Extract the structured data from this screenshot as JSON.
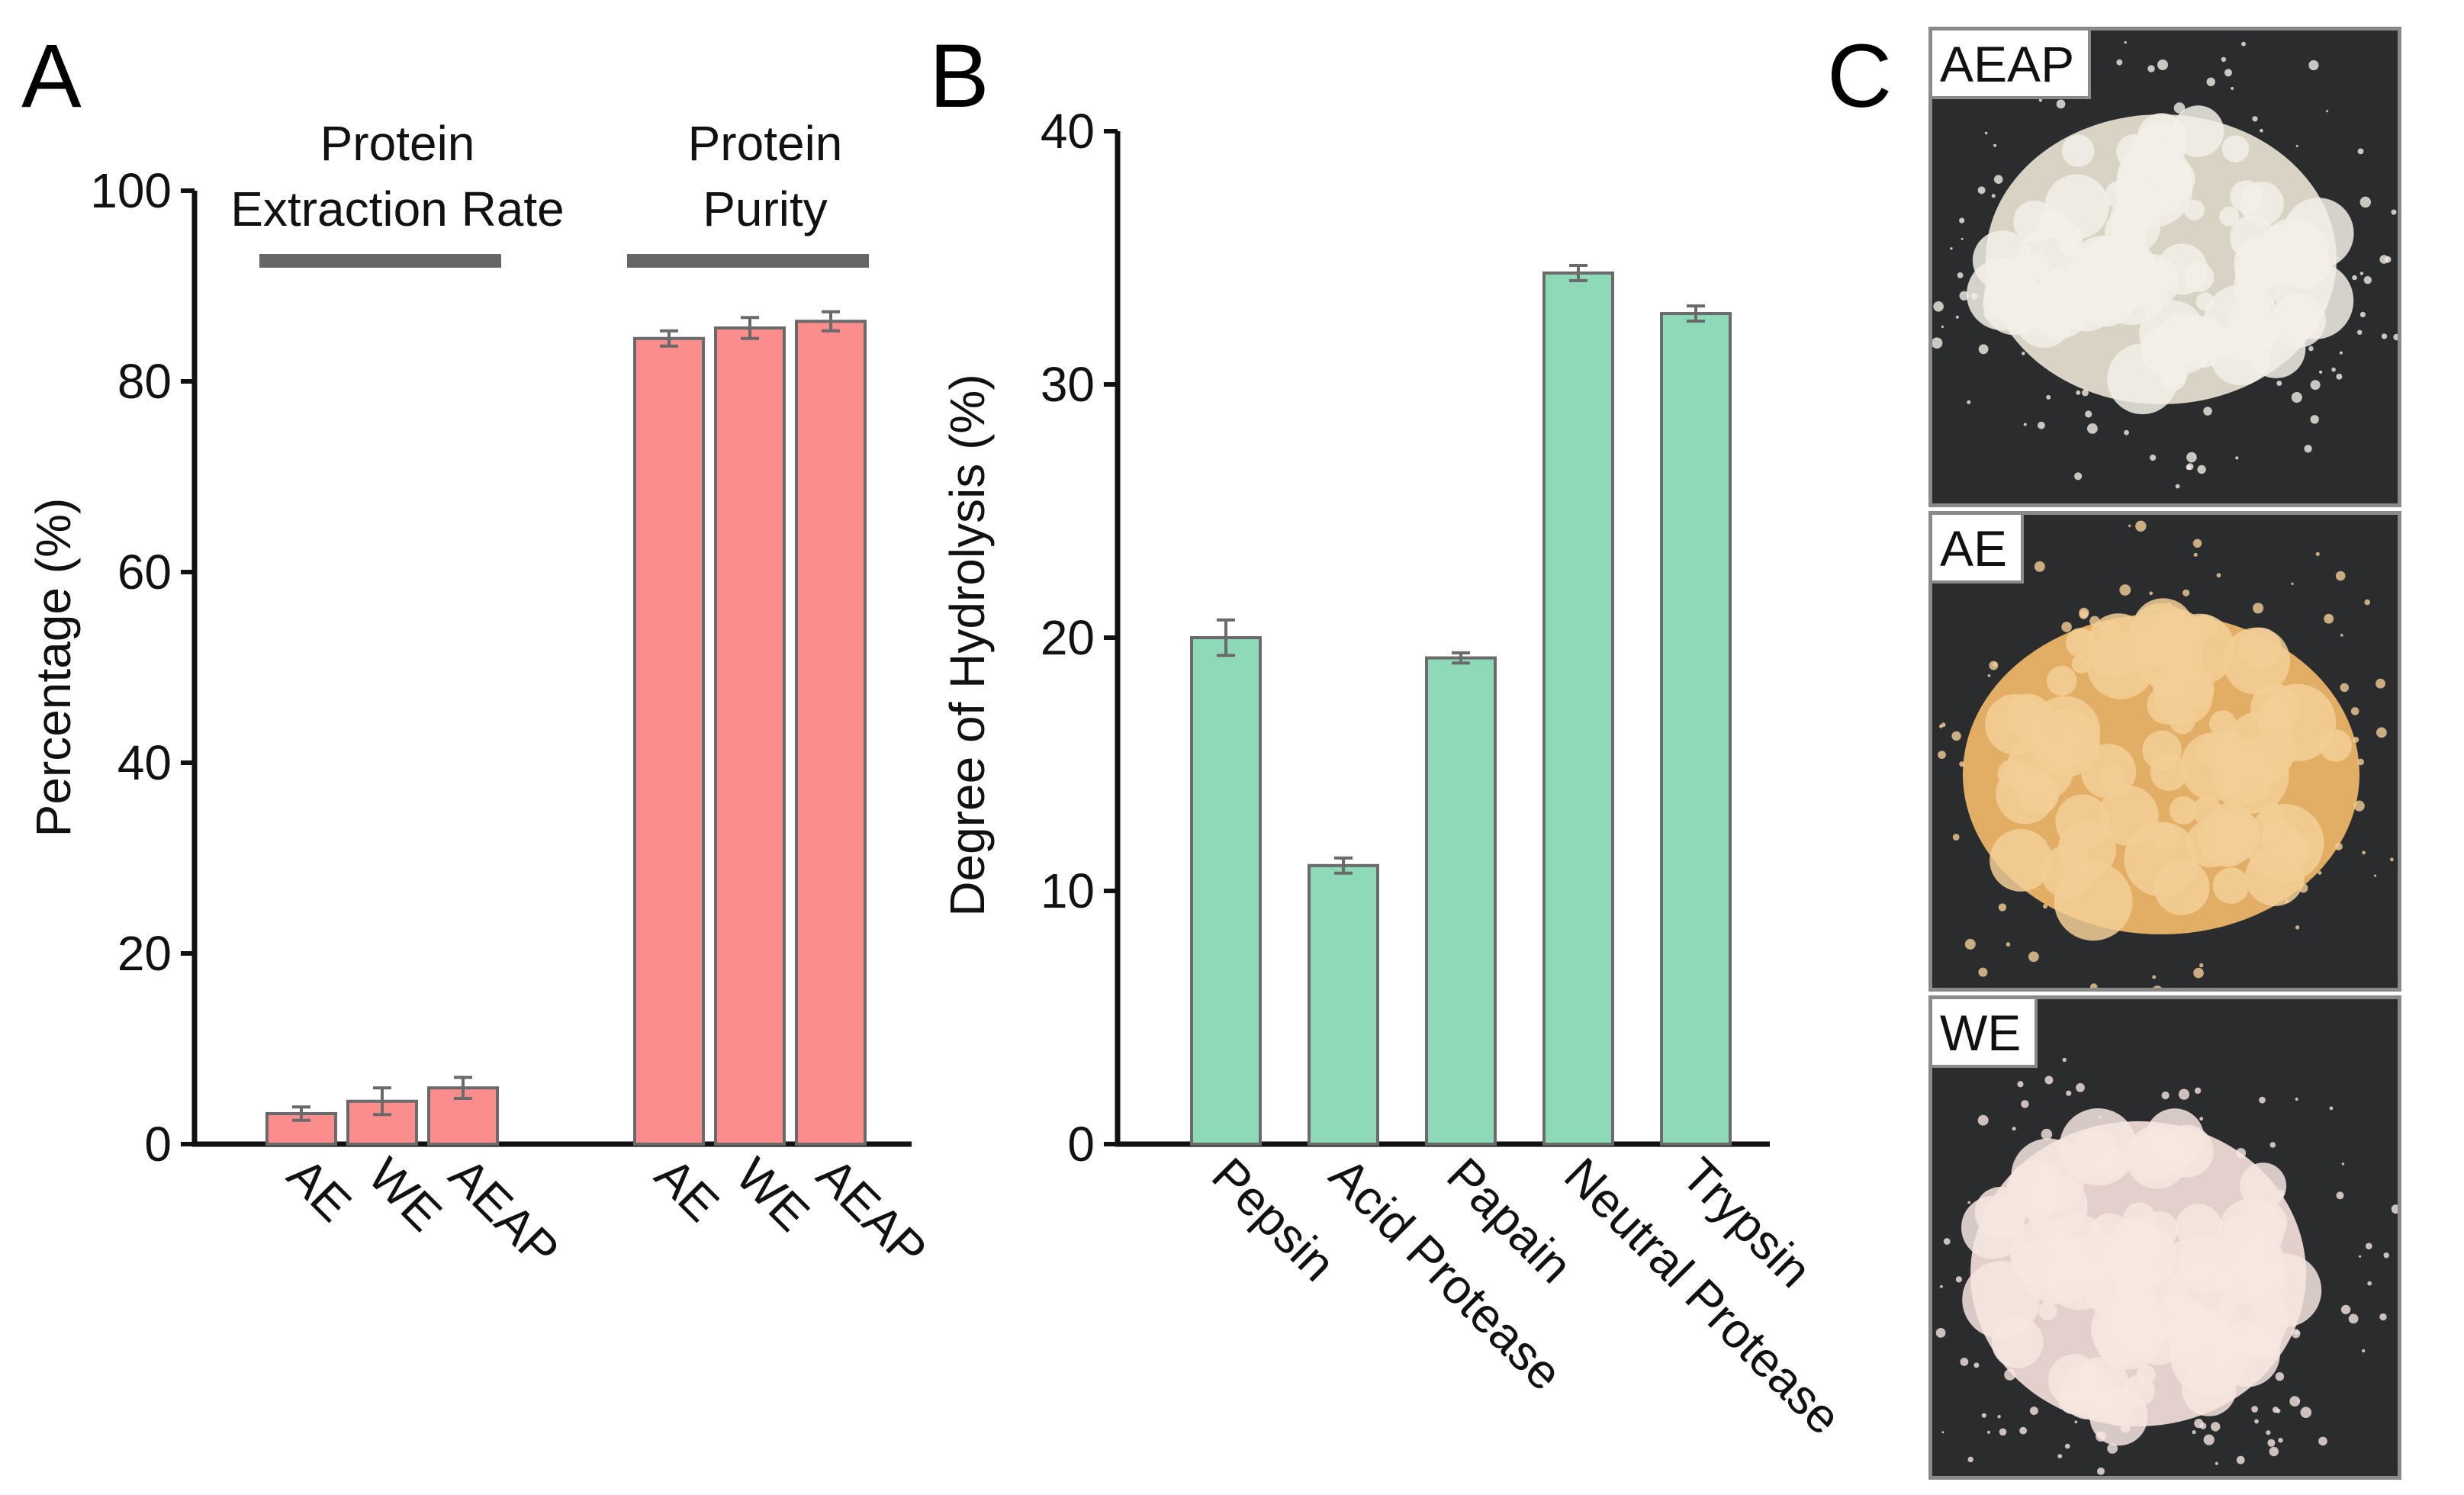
{
  "panel_letters": {
    "a": "A",
    "b": "B",
    "c": "C"
  },
  "colors": {
    "bar_a": "#fc8d8d",
    "bar_b": "#8dd9b8",
    "bar_edge": "#6a6a6a",
    "bracket": "#666666"
  },
  "chart_data": [
    {
      "type": "bar",
      "title": "",
      "ylabel": "Percentage (%)",
      "ylim": [
        0,
        100
      ],
      "yticks": [
        "0",
        "20",
        "40",
        "60",
        "80",
        "100"
      ],
      "groups": [
        {
          "label_line1": "Protein",
          "label_line2": "Extraction Rate",
          "categories": [
            "AE",
            "WE",
            "AEAP"
          ],
          "values": [
            3.2,
            4.5,
            5.9
          ],
          "errors": [
            0.7,
            1.4,
            1.1
          ]
        },
        {
          "label_line1": "Protein",
          "label_line2": "Purity",
          "categories": [
            "AE",
            "WE",
            "AEAP"
          ],
          "values": [
            84.5,
            85.6,
            86.3
          ],
          "errors": [
            0.8,
            1.1,
            1.0
          ]
        }
      ]
    },
    {
      "type": "bar",
      "title": "",
      "ylabel": "Degree of Hydrolysis (%)",
      "ylim": [
        0,
        40
      ],
      "yticks": [
        "0",
        "10",
        "20",
        "30",
        "40"
      ],
      "categories": [
        "Pepsin",
        "Acid Protease",
        "Papain",
        "Neutral Protease",
        "Trypsin"
      ],
      "values": [
        20.0,
        11.0,
        19.2,
        34.4,
        32.8
      ],
      "errors": [
        0.7,
        0.3,
        0.2,
        0.3,
        0.3
      ]
    }
  ],
  "photos": [
    {
      "label": "AEAP",
      "powder": "#f3efe6",
      "shadow": "#d9d3c6"
    },
    {
      "label": "AE",
      "powder": "#f2cf96",
      "shadow": "#e2ae66"
    },
    {
      "label": "WE",
      "powder": "#f6e6e1",
      "shadow": "#e3cfcb"
    }
  ]
}
